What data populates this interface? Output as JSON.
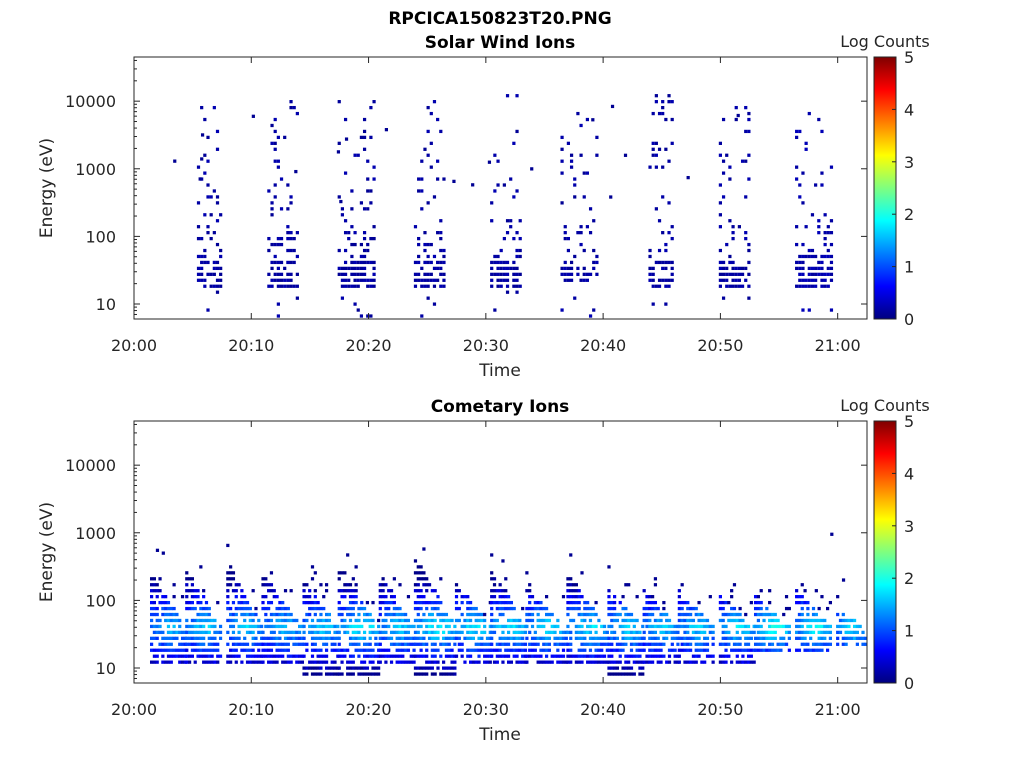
{
  "figure_title": "RPCICA150823T20.PNG",
  "colors": {
    "jet_stops": [
      "#00007f",
      "#0000ff",
      "#007fff",
      "#00ffff",
      "#7fff7f",
      "#ffff00",
      "#ff7f00",
      "#ff0000",
      "#7f0000"
    ]
  },
  "chart_data": [
    {
      "type": "heatmap",
      "title": "Solar Wind Ions",
      "xlabel": "Time",
      "ylabel": "Energy (eV)",
      "x_ticks": [
        "20:00",
        "20:10",
        "20:20",
        "20:30",
        "20:40",
        "20:50",
        "21:00"
      ],
      "x_tick_minutes": [
        0,
        10,
        20,
        30,
        40,
        50,
        60
      ],
      "xlim_minutes": [
        0,
        62.5
      ],
      "y_scale": "log",
      "y_ticks": [
        "10",
        "100",
        "1000",
        "10000"
      ],
      "y_tick_values": [
        10,
        100,
        1000,
        10000
      ],
      "ylim": [
        6,
        45000
      ],
      "colorbar": {
        "label": "Log Counts",
        "ticks": [
          "0",
          "1",
          "2",
          "3",
          "4",
          "5"
        ],
        "range": [
          0,
          5
        ],
        "colormap": "jet"
      },
      "grid": false,
      "bursts": [
        {
          "start_min": 5.5,
          "end_min": 7.5,
          "core_low_eV": 18,
          "core_high_eV": 45,
          "max_eV": 13000,
          "level": 0.1
        },
        {
          "start_min": 11.5,
          "end_min": 14.0,
          "core_low_eV": 18,
          "core_high_eV": 45,
          "max_eV": 10000,
          "level": 0.1
        },
        {
          "start_min": 17.5,
          "end_min": 20.5,
          "core_low_eV": 18,
          "core_high_eV": 45,
          "max_eV": 11000,
          "level": 0.1
        },
        {
          "start_min": 24.0,
          "end_min": 26.5,
          "core_low_eV": 18,
          "core_high_eV": 45,
          "max_eV": 11000,
          "level": 0.1
        },
        {
          "start_min": 30.5,
          "end_min": 33.0,
          "core_low_eV": 18,
          "core_high_eV": 45,
          "max_eV": 15000,
          "level": 0.1
        },
        {
          "start_min": 36.5,
          "end_min": 39.5,
          "core_low_eV": 20,
          "core_high_eV": 40,
          "max_eV": 8000,
          "level": 0.1
        },
        {
          "start_min": 44.0,
          "end_min": 46.0,
          "core_low_eV": 18,
          "core_high_eV": 45,
          "max_eV": 13000,
          "level": 0.1
        },
        {
          "start_min": 50.0,
          "end_min": 52.5,
          "core_low_eV": 18,
          "core_high_eV": 45,
          "max_eV": 12000,
          "level": 0.1
        },
        {
          "start_min": 56.5,
          "end_min": 59.5,
          "core_low_eV": 18,
          "core_high_eV": 60,
          "max_eV": 7000,
          "level": 0.15
        }
      ]
    },
    {
      "type": "heatmap",
      "title": "Cometary Ions",
      "xlabel": "Time",
      "ylabel": "Energy (eV)",
      "x_ticks": [
        "20:00",
        "20:10",
        "20:20",
        "20:30",
        "20:40",
        "20:50",
        "21:00"
      ],
      "x_tick_minutes": [
        0,
        10,
        20,
        30,
        40,
        50,
        60
      ],
      "xlim_minutes": [
        0,
        62.5
      ],
      "y_scale": "log",
      "y_ticks": [
        "10",
        "100",
        "1000",
        "10000"
      ],
      "y_tick_values": [
        10,
        100,
        1000,
        10000
      ],
      "ylim": [
        6,
        45000
      ],
      "colorbar": {
        "label": "Log Counts",
        "ticks": [
          "0",
          "1",
          "2",
          "3",
          "4",
          "5"
        ],
        "range": [
          0,
          5
        ],
        "colormap": "jet"
      },
      "grid": false,
      "bursts": [
        {
          "start_min": 1.5,
          "end_min": 4.5,
          "peak_eV": 40,
          "max_eV": 250,
          "min_eV": 12,
          "level": 1.4
        },
        {
          "start_min": 4.5,
          "end_min": 7.5,
          "peak_eV": 40,
          "max_eV": 300,
          "min_eV": 12,
          "level": 1.5
        },
        {
          "start_min": 8.0,
          "end_min": 11.0,
          "peak_eV": 40,
          "max_eV": 400,
          "min_eV": 10,
          "level": 1.5
        },
        {
          "start_min": 11.0,
          "end_min": 14.5,
          "peak_eV": 40,
          "max_eV": 250,
          "min_eV": 12,
          "level": 1.4
        },
        {
          "start_min": 14.5,
          "end_min": 17.5,
          "peak_eV": 40,
          "max_eV": 200,
          "min_eV": 8,
          "level": 1.5
        },
        {
          "start_min": 17.5,
          "end_min": 21.0,
          "peak_eV": 40,
          "max_eV": 350,
          "min_eV": 8,
          "level": 1.7
        },
        {
          "start_min": 21.0,
          "end_min": 24.0,
          "peak_eV": 40,
          "max_eV": 250,
          "min_eV": 10,
          "level": 1.5
        },
        {
          "start_min": 24.0,
          "end_min": 27.5,
          "peak_eV": 40,
          "max_eV": 450,
          "min_eV": 8,
          "level": 1.7
        },
        {
          "start_min": 27.5,
          "end_min": 30.5,
          "peak_eV": 40,
          "max_eV": 200,
          "min_eV": 10,
          "level": 1.6
        },
        {
          "start_min": 30.5,
          "end_min": 33.5,
          "peak_eV": 40,
          "max_eV": 300,
          "min_eV": 10,
          "level": 1.6
        },
        {
          "start_min": 33.5,
          "end_min": 37.0,
          "peak_eV": 40,
          "max_eV": 150,
          "min_eV": 10,
          "level": 1.6
        },
        {
          "start_min": 37.0,
          "end_min": 40.5,
          "peak_eV": 40,
          "max_eV": 250,
          "min_eV": 10,
          "level": 1.6
        },
        {
          "start_min": 40.5,
          "end_min": 43.5,
          "peak_eV": 40,
          "max_eV": 150,
          "min_eV": 8,
          "level": 1.6
        },
        {
          "start_min": 43.5,
          "end_min": 46.5,
          "peak_eV": 40,
          "max_eV": 150,
          "min_eV": 10,
          "level": 1.5
        },
        {
          "start_min": 46.5,
          "end_min": 49.5,
          "peak_eV": 40,
          "max_eV": 150,
          "min_eV": 12,
          "level": 1.5
        },
        {
          "start_min": 50.0,
          "end_min": 53.0,
          "peak_eV": 40,
          "max_eV": 120,
          "min_eV": 12,
          "level": 1.6
        },
        {
          "start_min": 53.0,
          "end_min": 56.0,
          "peak_eV": 40,
          "max_eV": 120,
          "min_eV": 15,
          "level": 1.8
        },
        {
          "start_min": 56.5,
          "end_min": 59.5,
          "peak_eV": 40,
          "max_eV": 150,
          "min_eV": 15,
          "level": 1.7
        },
        {
          "start_min": 60.0,
          "end_min": 62.5,
          "peak_eV": 40,
          "max_eV": 70,
          "min_eV": 20,
          "level": 1.6
        }
      ]
    }
  ]
}
